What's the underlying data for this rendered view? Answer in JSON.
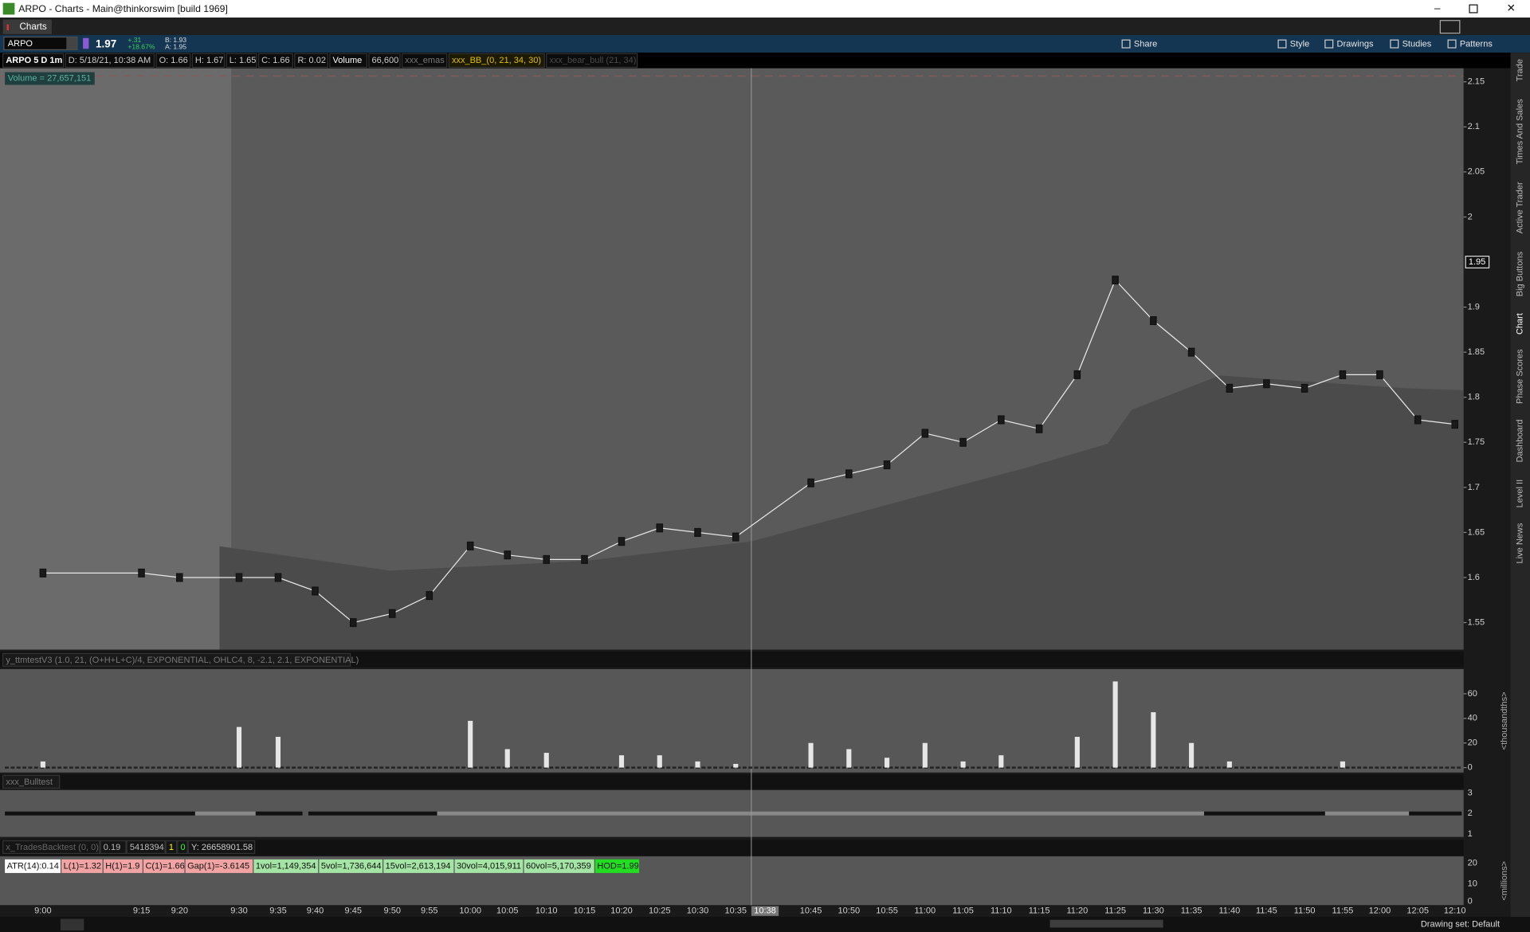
{
  "window": {
    "title": "ARPO - Charts - Main@thinkorswim [build 1969]",
    "tab": "Charts"
  },
  "toolbar": {
    "symbol": "ARPO",
    "last": "1.97",
    "change": "+.31",
    "change_pct": "+18.67%",
    "bid": "B: 1.93",
    "ask": "A: 1.95",
    "buttons": [
      "Share",
      "Style",
      "Drawings",
      "Studies",
      "Patterns"
    ]
  },
  "info_bar": [
    "ARPO 5 D 1m",
    "D: 5/18/21, 10:38 AM",
    "O: 1.66",
    "H: 1.67",
    "L: 1.65",
    "C: 1.66",
    "R: 0.02",
    "Volume",
    "66,600",
    "xxx_emas",
    "xxx_BB_(0, 21, 34, 30)",
    "xxx_bear_bull (21, 34)"
  ],
  "chart_data": [
    {
      "type": "line",
      "annotation": "Volume = 27,657,151",
      "categories": [
        "9:00",
        "9:15",
        "9:20",
        "9:30",
        "9:35",
        "9:40",
        "9:45",
        "9:50",
        "9:55",
        "10:00",
        "10:05",
        "10:10",
        "10:15",
        "10:20",
        "10:25",
        "10:30",
        "10:35",
        "10:45",
        "10:50",
        "10:55",
        "11:00",
        "11:05",
        "11:10",
        "11:15",
        "11:20",
        "11:25",
        "11:30",
        "11:35",
        "11:40",
        "11:45",
        "11:50",
        "11:55",
        "12:00",
        "12:05",
        "12:10"
      ],
      "values": [
        1.605,
        1.605,
        1.6,
        1.6,
        1.6,
        1.585,
        1.55,
        1.56,
        1.58,
        1.635,
        1.625,
        1.62,
        1.62,
        1.64,
        1.655,
        1.65,
        1.645,
        1.705,
        1.715,
        1.725,
        1.76,
        1.75,
        1.775,
        1.765,
        1.825,
        1.93,
        1.885,
        1.85,
        1.81,
        1.815,
        1.81,
        1.825,
        1.825,
        1.775,
        1.77
      ],
      "color": "#e8e8e8",
      "ylim": [
        1.52,
        2.165
      ],
      "yticks": [
        1.55,
        1.6,
        1.65,
        1.7,
        1.75,
        1.8,
        1.85,
        1.9,
        2,
        2.05,
        2.1,
        2.15
      ],
      "price_marker": 1.95,
      "time_marker": "10:38"
    },
    {
      "type": "bar",
      "title": "y_ttmtestV3 (1.0, 21, (O+H+L+C)/4, EXPONENTIAL, OHLC4, 8, -2.1, 2.1, EXPONENTIAL)",
      "values": [
        5,
        0,
        0,
        33,
        25,
        0,
        0,
        0,
        0,
        38,
        15,
        12,
        0,
        10,
        10,
        5,
        3,
        20,
        15,
        8,
        20,
        5,
        10,
        0,
        25,
        70,
        45,
        20,
        5,
        0,
        0,
        5,
        0,
        0,
        0
      ],
      "color": "#e6e6e6",
      "ylim": [
        -4,
        80
      ],
      "yticks": [
        0,
        20,
        40,
        60
      ],
      "axis_label": "<thousandths>"
    }
  ],
  "bulltest": {
    "title": "xxx_Bulltest",
    "ticks": [
      "3",
      "2",
      "1"
    ]
  },
  "trades": {
    "header": [
      "x_TradesBacktest (0, 0)",
      "0.19",
      "5418394",
      "1",
      "0",
      "Y: 26658901.58"
    ],
    "labels": [
      "ATR(14):0.14",
      "L(1)=1.32",
      "H(1)=1.9",
      "C(1)=1.66",
      "Gap(1)=-3.6145",
      "1vol=1,149,354",
      "5vol=1,736,644",
      "15vol=2,613,194",
      "30vol=4,015,911",
      "60vol=5,170,359",
      "HOD=1.99"
    ],
    "ticks": [
      "20",
      "10",
      "0"
    ],
    "axis_label": "<millions>"
  },
  "side_tabs": [
    "Trade",
    "Times And Sales",
    "Active Trader",
    "Big Buttons",
    "Chart",
    "Phase Scores",
    "Dashboard",
    "Level II",
    "Live News"
  ],
  "status": "Drawing set: Default"
}
